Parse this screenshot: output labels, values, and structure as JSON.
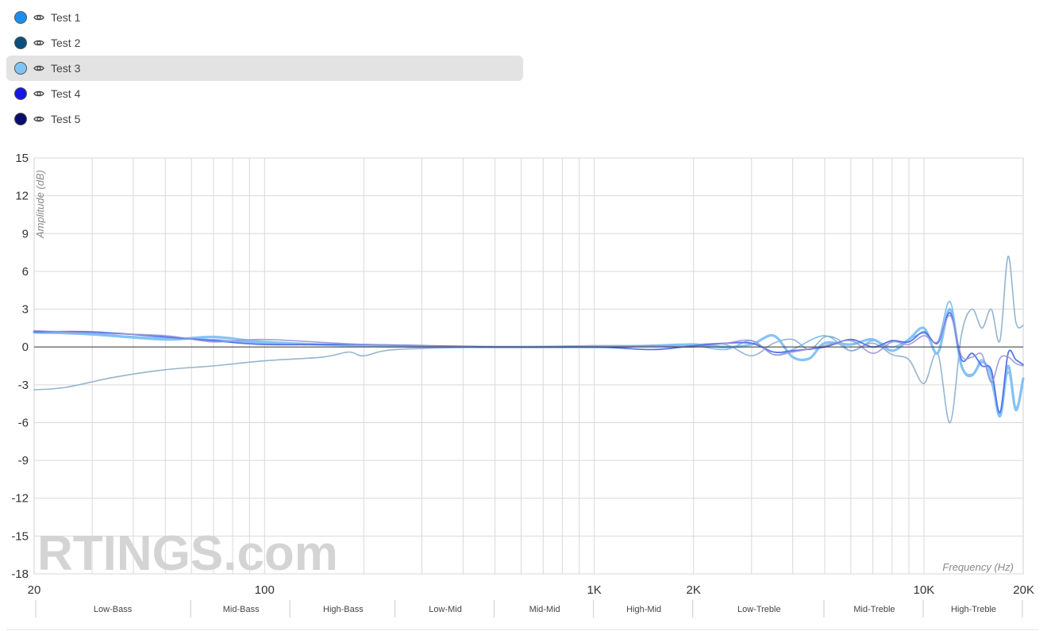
{
  "legend": {
    "items": [
      {
        "label": "Test 1",
        "color": "#1a8fef",
        "visible": true,
        "selected": false
      },
      {
        "label": "Test 2",
        "color": "#0b4f7c",
        "visible": true,
        "selected": false
      },
      {
        "label": "Test 3",
        "color": "#80c4f5",
        "visible": true,
        "selected": true
      },
      {
        "label": "Test 4",
        "color": "#1616e6",
        "visible": true,
        "selected": false
      },
      {
        "label": "Test 5",
        "color": "#0c0c6e",
        "visible": true,
        "selected": false
      }
    ],
    "eye_icon": "eye-icon"
  },
  "watermark": "RTINGS.com",
  "chart_data": {
    "type": "line",
    "xlabel": "Frequency (Hz)",
    "ylabel": "Amplitude (dB)",
    "x_scale": "log",
    "xlim": [
      20,
      20000
    ],
    "ylim": [
      -18,
      15
    ],
    "yticks": [
      15,
      12,
      9,
      6,
      3,
      0,
      -3,
      -6,
      -9,
      -12,
      -15,
      -18
    ],
    "xticks": [
      {
        "value": 20,
        "label": "20"
      },
      {
        "value": 100,
        "label": "100"
      },
      {
        "value": 1000,
        "label": "1K"
      },
      {
        "value": 2000,
        "label": "2K"
      },
      {
        "value": 10000,
        "label": "10K"
      },
      {
        "value": 20000,
        "label": "20K"
      }
    ],
    "grid": true,
    "bands": [
      {
        "label": "Low-Bass",
        "from": 20,
        "to": 60
      },
      {
        "label": "Mid-Bass",
        "from": 60,
        "to": 120
      },
      {
        "label": "High-Bass",
        "from": 120,
        "to": 250
      },
      {
        "label": "Low-Mid",
        "from": 250,
        "to": 500
      },
      {
        "label": "Mid-Mid",
        "from": 500,
        "to": 1000
      },
      {
        "label": "High-Mid",
        "from": 1000,
        "to": 2000
      },
      {
        "label": "Low-Treble",
        "from": 2000,
        "to": 5000
      },
      {
        "label": "Mid-Treble",
        "from": 5000,
        "to": 10000
      },
      {
        "label": "High-Treble",
        "from": 10000,
        "to": 20000
      }
    ],
    "series": [
      {
        "name": "Test 1",
        "color": "#6ab2ec",
        "width": 1.6,
        "opacity": 0.85,
        "points": [
          [
            20,
            1.1
          ],
          [
            30,
            1.0
          ],
          [
            50,
            0.7
          ],
          [
            70,
            0.6
          ],
          [
            100,
            0.3
          ],
          [
            200,
            0.1
          ],
          [
            500,
            0.0
          ],
          [
            1000,
            0.1
          ],
          [
            1500,
            0.1
          ],
          [
            2000,
            0.1
          ],
          [
            2500,
            -0.2
          ],
          [
            3000,
            0.5
          ],
          [
            3500,
            -0.6
          ],
          [
            4000,
            -0.2
          ],
          [
            5000,
            0.9
          ],
          [
            6000,
            -0.3
          ],
          [
            7000,
            0.5
          ],
          [
            8000,
            0.0
          ],
          [
            9000,
            0.6
          ],
          [
            10000,
            1.1
          ],
          [
            11000,
            0.4
          ],
          [
            12000,
            3.6
          ],
          [
            13000,
            -1.5
          ],
          [
            14000,
            -2.3
          ],
          [
            15000,
            -1.0
          ],
          [
            16000,
            -2.8
          ],
          [
            17000,
            -5.3
          ],
          [
            18000,
            -2.0
          ],
          [
            19000,
            -4.8
          ],
          [
            20000,
            -2.6
          ]
        ]
      },
      {
        "name": "Test 2",
        "color": "#8fb1cc",
        "width": 1.6,
        "opacity": 0.95,
        "points": [
          [
            20,
            -3.4
          ],
          [
            25,
            -3.2
          ],
          [
            35,
            -2.4
          ],
          [
            50,
            -1.8
          ],
          [
            70,
            -1.5
          ],
          [
            100,
            -1.1
          ],
          [
            150,
            -0.8
          ],
          [
            180,
            -0.4
          ],
          [
            200,
            -0.7
          ],
          [
            250,
            -0.2
          ],
          [
            500,
            0.0
          ],
          [
            1000,
            0.1
          ],
          [
            1500,
            0.1
          ],
          [
            2000,
            0.2
          ],
          [
            2500,
            0.2
          ],
          [
            3000,
            -0.7
          ],
          [
            3500,
            0.3
          ],
          [
            4000,
            0.6
          ],
          [
            4500,
            -0.2
          ],
          [
            5000,
            0.8
          ],
          [
            5500,
            0.6
          ],
          [
            6000,
            -0.3
          ],
          [
            7000,
            0.3
          ],
          [
            8000,
            -0.6
          ],
          [
            9000,
            -1.0
          ],
          [
            10000,
            -2.9
          ],
          [
            11000,
            -0.5
          ],
          [
            12000,
            -6.0
          ],
          [
            13000,
            1.0
          ],
          [
            14000,
            3.0
          ],
          [
            15000,
            1.5
          ],
          [
            16000,
            3.0
          ],
          [
            17000,
            0.5
          ],
          [
            18000,
            7.2
          ],
          [
            19000,
            2.0
          ],
          [
            20000,
            1.7
          ]
        ]
      },
      {
        "name": "Test 3",
        "color": "#7fc0f4",
        "width": 3.2,
        "opacity": 0.95,
        "points": [
          [
            20,
            1.2
          ],
          [
            30,
            1.0
          ],
          [
            50,
            0.6
          ],
          [
            70,
            0.8
          ],
          [
            100,
            0.4
          ],
          [
            200,
            0.1
          ],
          [
            500,
            0.0
          ],
          [
            1000,
            0.0
          ],
          [
            1500,
            0.1
          ],
          [
            2000,
            0.2
          ],
          [
            2500,
            0.0
          ],
          [
            3000,
            0.2
          ],
          [
            3500,
            0.9
          ],
          [
            4000,
            -0.8
          ],
          [
            4500,
            -0.9
          ],
          [
            5000,
            0.3
          ],
          [
            6000,
            0.2
          ],
          [
            7000,
            0.6
          ],
          [
            8000,
            -0.3
          ],
          [
            9000,
            0.6
          ],
          [
            10000,
            1.5
          ],
          [
            11000,
            -0.5
          ],
          [
            12000,
            3.0
          ],
          [
            13000,
            -1.5
          ],
          [
            14000,
            -2.2
          ],
          [
            15000,
            -1.2
          ],
          [
            16000,
            -2.2
          ],
          [
            17000,
            -5.5
          ],
          [
            18000,
            -1.5
          ],
          [
            19000,
            -5.0
          ],
          [
            20000,
            -2.5
          ]
        ]
      },
      {
        "name": "Test 4",
        "color": "#4e6fe6",
        "width": 1.8,
        "opacity": 0.95,
        "points": [
          [
            20,
            1.2
          ],
          [
            30,
            1.2
          ],
          [
            50,
            0.8
          ],
          [
            70,
            0.5
          ],
          [
            100,
            0.2
          ],
          [
            200,
            0.2
          ],
          [
            500,
            0.0
          ],
          [
            1000,
            0.0
          ],
          [
            1500,
            -0.2
          ],
          [
            2000,
            0.1
          ],
          [
            2500,
            0.3
          ],
          [
            3000,
            0.3
          ],
          [
            3500,
            -0.4
          ],
          [
            4000,
            -0.3
          ],
          [
            5000,
            0.0
          ],
          [
            6000,
            0.6
          ],
          [
            7000,
            0.0
          ],
          [
            8000,
            0.5
          ],
          [
            9000,
            0.4
          ],
          [
            10000,
            1.2
          ],
          [
            11000,
            0.3
          ],
          [
            12000,
            2.7
          ],
          [
            13000,
            -1.0
          ],
          [
            14000,
            -0.5
          ],
          [
            15000,
            -1.5
          ],
          [
            16000,
            -1.8
          ],
          [
            17000,
            -5.2
          ],
          [
            18000,
            -0.5
          ],
          [
            19000,
            -1.0
          ],
          [
            20000,
            -1.4
          ]
        ]
      },
      {
        "name": "Test 5",
        "color": "#9a94d8",
        "width": 1.6,
        "opacity": 0.9,
        "points": [
          [
            20,
            1.3
          ],
          [
            30,
            1.1
          ],
          [
            50,
            0.9
          ],
          [
            70,
            0.4
          ],
          [
            100,
            0.6
          ],
          [
            200,
            0.2
          ],
          [
            500,
            0.0
          ],
          [
            1000,
            0.0
          ],
          [
            1500,
            0.1
          ],
          [
            2000,
            0.0
          ],
          [
            2500,
            0.3
          ],
          [
            3000,
            0.5
          ],
          [
            3500,
            -0.6
          ],
          [
            4000,
            -0.4
          ],
          [
            5000,
            0.1
          ],
          [
            6000,
            0.5
          ],
          [
            7000,
            -0.5
          ],
          [
            8000,
            0.4
          ],
          [
            9000,
            0.2
          ],
          [
            10000,
            0.9
          ],
          [
            11000,
            0.4
          ],
          [
            12000,
            2.5
          ],
          [
            13000,
            -0.7
          ],
          [
            14000,
            -0.8
          ],
          [
            15000,
            -0.6
          ],
          [
            16000,
            -2.8
          ],
          [
            17000,
            -0.9
          ],
          [
            18000,
            -0.8
          ],
          [
            19000,
            -1.3
          ],
          [
            20000,
            -1.5
          ]
        ]
      }
    ]
  }
}
